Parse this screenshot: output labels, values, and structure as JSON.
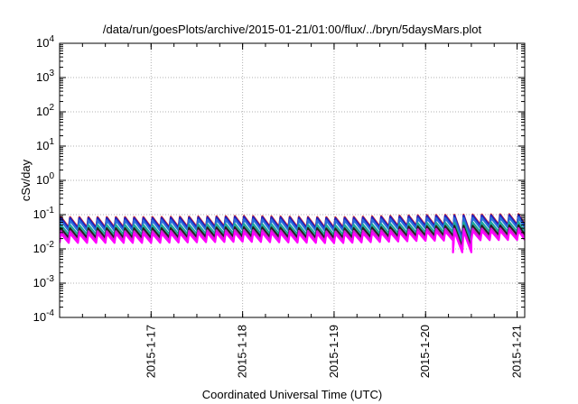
{
  "chart_data": {
    "type": "line",
    "title": "/data/run/goesPlots/archive/2015-01-21/01:00/flux/../bryn/5daysMars.plot",
    "xlabel": "Coordinated Universal Time (UTC)",
    "ylabel": "cSv/day",
    "x_range": [
      "2015-01-16 00:00",
      "2015-01-21 02:00"
    ],
    "x_ticks": [
      "2015-1-17",
      "2015-1-18",
      "2015-1-19",
      "2015-1-20",
      "2015-1-21"
    ],
    "ylim": [
      0.0001,
      10000
    ],
    "log_y": true,
    "y_ticks": [
      {
        "base": "10",
        "exp": "-4"
      },
      {
        "base": "10",
        "exp": "-3"
      },
      {
        "base": "10",
        "exp": "-2"
      },
      {
        "base": "10",
        "exp": "-1"
      },
      {
        "base": "10",
        "exp": "0"
      },
      {
        "base": "10",
        "exp": "1"
      },
      {
        "base": "10",
        "exp": "2"
      },
      {
        "base": "10",
        "exp": "3"
      },
      {
        "base": "10",
        "exp": "4"
      }
    ],
    "grid": true,
    "cycles_per_day": 10,
    "series_color": [
      "#d62728",
      "#1f1fbf",
      "#2a6fdb",
      "#1fa89a",
      "#222222",
      "#d01bd0",
      "#ff00ff"
    ],
    "series": [
      {
        "peak": 0.085,
        "trough": 0.042
      },
      {
        "peak": 0.08,
        "trough": 0.039
      },
      {
        "peak": 0.068,
        "trough": 0.034
      },
      {
        "peak": 0.05,
        "trough": 0.026
      },
      {
        "peak": 0.04,
        "trough": 0.021
      },
      {
        "peak": 0.033,
        "trough": 0.017
      },
      {
        "peak": 0.028,
        "trough": 0.015
      }
    ],
    "day_factors": [
      1.0,
      1.0,
      1.08,
      0.98,
      1.15,
      1.22
    ],
    "dip": {
      "x": "2015-01-20 10:00",
      "factor": 0.45
    }
  }
}
